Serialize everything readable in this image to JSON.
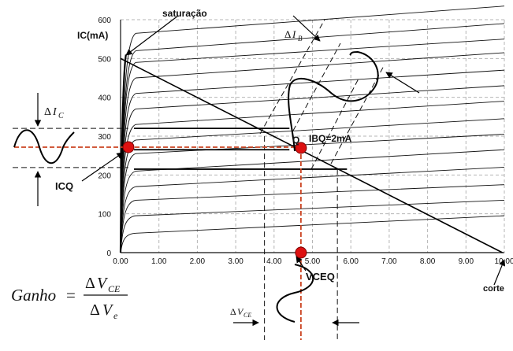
{
  "chart_data": {
    "type": "line",
    "ylabel": "IC(mA)",
    "xlim": [
      0,
      10
    ],
    "ylim": [
      0,
      600
    ],
    "x_ticks": [
      "0.00",
      "1.00",
      "2.00",
      "3.00",
      "4.00",
      "5.00",
      "6.00",
      "7.00",
      "8.00",
      "9.00",
      "10.00"
    ],
    "y_ticks": [
      "0",
      "100",
      "200",
      "300",
      "400",
      "500",
      "600"
    ],
    "characteristic_curves_ic_at_vce_10": [
      95,
      135,
      175,
      220,
      265,
      305,
      345,
      390,
      430,
      470,
      515,
      550,
      590,
      635
    ],
    "characteristic_curves_ic_at_vce_0_4": [
      50,
      95,
      135,
      170,
      210,
      255,
      290,
      330,
      370,
      410,
      450,
      490,
      520,
      565
    ],
    "load_line": {
      "x": [
        0,
        10
      ],
      "y": [
        500,
        0
      ]
    },
    "q_point": {
      "x": 4.7,
      "y": 268
    },
    "q_lines": {
      "upper": 320,
      "lower": 215,
      "x_left": 3.75,
      "x_right": 5.65
    },
    "grid": true,
    "legend": "none"
  },
  "labels": {
    "saturation": "saturação",
    "cutoff": "corte",
    "q": "Q",
    "ibq": "IBQ=2mA",
    "icq": "ICQ",
    "vceq": "VCEQ",
    "delta": "Δ",
    "i": "I",
    "sub_c": "C",
    "sub_b": "B",
    "v": "V",
    "sub_ce": "CE",
    "sub_e": "e",
    "gain_word": "Ganho",
    "equals": "="
  },
  "colors": {
    "curve": "#111111",
    "grid": "#b5b5b5",
    "q_marker": "#dd1111",
    "q_dash": "#cc4422"
  }
}
